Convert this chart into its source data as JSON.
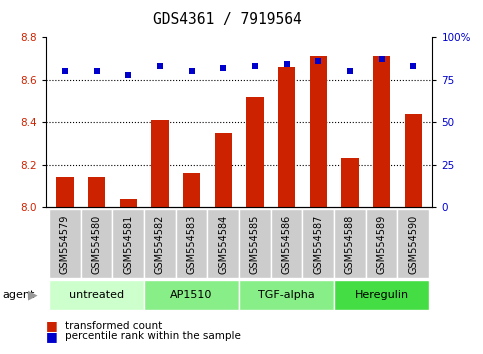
{
  "title": "GDS4361 / 7919564",
  "samples": [
    "GSM554579",
    "GSM554580",
    "GSM554581",
    "GSM554582",
    "GSM554583",
    "GSM554584",
    "GSM554585",
    "GSM554586",
    "GSM554587",
    "GSM554588",
    "GSM554589",
    "GSM554590"
  ],
  "bar_values": [
    8.14,
    8.14,
    8.04,
    8.41,
    8.16,
    8.35,
    8.52,
    8.66,
    8.71,
    8.23,
    8.71,
    8.44
  ],
  "dot_values_pct": [
    80,
    80,
    78,
    83,
    80,
    82,
    83,
    84,
    86,
    80,
    87,
    83
  ],
  "bar_color": "#cc2200",
  "dot_color": "#0000cc",
  "ylim_left": [
    8.0,
    8.8
  ],
  "ylim_right": [
    0,
    100
  ],
  "yticks_left": [
    8.0,
    8.2,
    8.4,
    8.6,
    8.8
  ],
  "yticks_right": [
    0,
    25,
    50,
    75,
    100
  ],
  "ytick_right_labels": [
    "0",
    "25",
    "50",
    "75",
    "100%"
  ],
  "grid_lines": [
    8.2,
    8.4,
    8.6
  ],
  "groups": [
    {
      "label": "untreated",
      "start": 0,
      "end": 3,
      "color": "#ccffcc"
    },
    {
      "label": "AP1510",
      "start": 3,
      "end": 6,
      "color": "#88ee88"
    },
    {
      "label": "TGF-alpha",
      "start": 6,
      "end": 9,
      "color": "#88ee88"
    },
    {
      "label": "Heregulin",
      "start": 9,
      "end": 12,
      "color": "#44dd44"
    }
  ],
  "agent_label": "agent",
  "legend_bar_label": "transformed count",
  "legend_dot_label": "percentile rank within the sample",
  "bar_width": 0.55,
  "title_fontsize": 10.5,
  "tick_fontsize": 7.5,
  "sample_label_fontsize": 7,
  "group_label_fontsize": 8,
  "legend_fontsize": 7.5,
  "sample_box_color": "#cccccc",
  "plot_bg_color": "#ffffff"
}
